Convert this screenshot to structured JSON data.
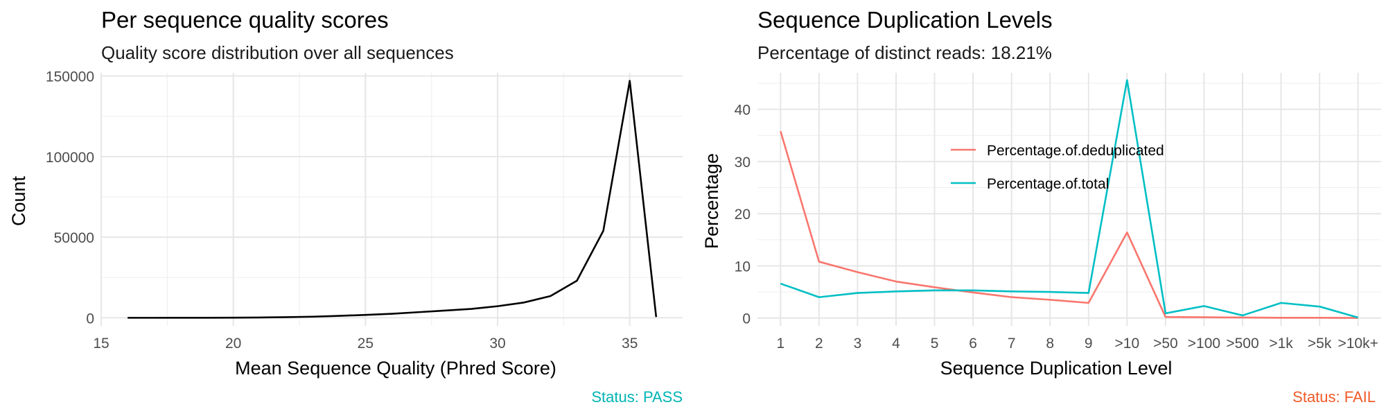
{
  "chart_data": [
    {
      "type": "line",
      "title": "Per sequence quality scores",
      "subtitle": "Quality score distribution over all sequences",
      "xlabel": "Mean Sequence Quality (Phred Score)",
      "ylabel": "Count",
      "xlim": [
        15,
        37
      ],
      "ylim": [
        -5000,
        152000
      ],
      "xticks": [
        15,
        20,
        25,
        30,
        35
      ],
      "yticks": [
        0,
        50000,
        100000,
        150000
      ],
      "grid": true,
      "series": [
        {
          "name": "",
          "color": "#000000",
          "x": [
            16,
            17,
            18,
            19,
            20,
            21,
            22,
            23,
            24,
            25,
            26,
            27,
            28,
            29,
            30,
            31,
            32,
            33,
            34,
            35,
            36
          ],
          "values": [
            0,
            0,
            10,
            30,
            100,
            200,
            400,
            700,
            1200,
            1800,
            2500,
            3500,
            4500,
            5500,
            7200,
            9500,
            13500,
            23000,
            54000,
            147000,
            500
          ]
        }
      ],
      "status": {
        "text": "Status: PASS",
        "color": "#00B4B4"
      }
    },
    {
      "type": "line",
      "title": "Sequence Duplication Levels",
      "subtitle": "Percentage of distinct reads: 18.21%",
      "xlabel": "Sequence Duplication Level",
      "ylabel": "Percentage",
      "categories": [
        "1",
        "2",
        "3",
        "4",
        "5",
        "6",
        "7",
        "8",
        "9",
        ">10",
        ">50",
        ">100",
        ">500",
        ">1k",
        ">5k",
        ">10k+"
      ],
      "ylim": [
        -1.5,
        47
      ],
      "yticks": [
        0,
        10,
        20,
        30,
        40
      ],
      "grid": true,
      "legend_position": "center-inside",
      "series": [
        {
          "name": "Percentage.of.deduplicated",
          "color": "#F8766D",
          "values": [
            35.8,
            10.8,
            8.8,
            7.0,
            5.9,
            4.9,
            4.0,
            3.5,
            2.9,
            16.4,
            0.2,
            0.15,
            0.1,
            0.05,
            0.05,
            0.02
          ]
        },
        {
          "name": "Percentage.of.total",
          "color": "#00BFC4",
          "values": [
            6.6,
            4.0,
            4.8,
            5.1,
            5.3,
            5.3,
            5.1,
            5.0,
            4.8,
            45.6,
            0.9,
            2.3,
            0.5,
            2.9,
            2.2,
            0.1
          ]
        }
      ],
      "status": {
        "text": "Status: FAIL",
        "color": "#F05A28"
      }
    }
  ]
}
